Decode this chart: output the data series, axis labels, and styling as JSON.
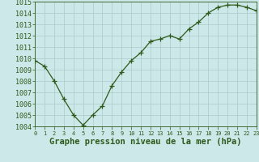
{
  "x": [
    0,
    1,
    2,
    3,
    4,
    5,
    6,
    7,
    8,
    9,
    10,
    11,
    12,
    13,
    14,
    15,
    16,
    17,
    18,
    19,
    20,
    21,
    22,
    23
  ],
  "y": [
    1009.8,
    1009.3,
    1008.0,
    1006.4,
    1005.0,
    1004.1,
    1005.0,
    1005.8,
    1007.6,
    1008.8,
    1009.8,
    1010.5,
    1011.5,
    1011.7,
    1012.0,
    1011.7,
    1012.6,
    1013.2,
    1014.0,
    1014.5,
    1014.7,
    1014.7,
    1014.5,
    1014.2
  ],
  "ylim": [
    1004,
    1015
  ],
  "xlim": [
    0,
    23
  ],
  "yticks": [
    1004,
    1005,
    1006,
    1007,
    1008,
    1009,
    1010,
    1011,
    1012,
    1013,
    1014,
    1015
  ],
  "xticks": [
    0,
    1,
    2,
    3,
    4,
    5,
    6,
    7,
    8,
    9,
    10,
    11,
    12,
    13,
    14,
    15,
    16,
    17,
    18,
    19,
    20,
    21,
    22,
    23
  ],
  "xlabel": "Graphe pression niveau de la mer (hPa)",
  "line_color": "#2d5a1b",
  "marker": "+",
  "marker_size": 4,
  "background_color": "#cce8e8",
  "grid_color": "#aacccc",
  "tick_color": "#2d5a1b",
  "label_color": "#2d5a1b",
  "xlabel_fontsize": 7.5,
  "ytick_fontsize": 6,
  "xtick_fontsize": 5
}
